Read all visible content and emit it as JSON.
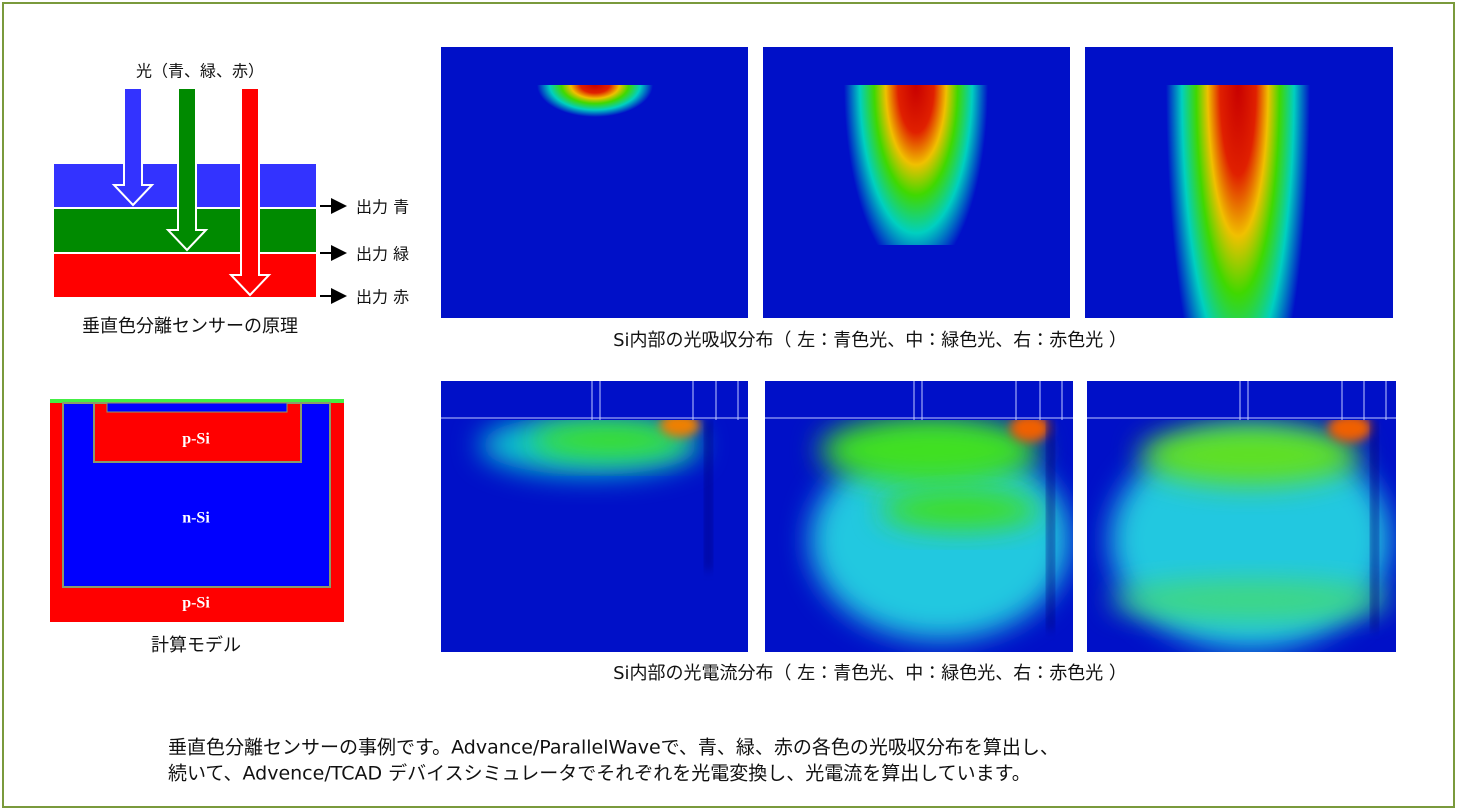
{
  "principle": {
    "light_label": "光（青、緑、赤）",
    "outputs": [
      "出力 青",
      "出力 緑",
      "出力 赤"
    ],
    "caption": "垂直色分離センサーの原理"
  },
  "model": {
    "labels": [
      "p-Si",
      "n-Si",
      "p-Si"
    ],
    "caption": "計算モデル"
  },
  "absorption_caption": "Si内部の光吸収分布（ 左：青色光、中：緑色光、右：赤色光 ）",
  "current_caption": "Si内部の光電流分布（ 左：青色光、中：緑色光、右：赤色光 ）",
  "description": [
    "垂直色分離センサーの事例です。Advance/ParallelWaveで、青、緑、赤の各色の光吸収分布を算出し、",
    "続いて、Advence/TCAD デバイスシミュレータでそれぞれを光電変換し、光電流を算出しています。"
  ]
}
